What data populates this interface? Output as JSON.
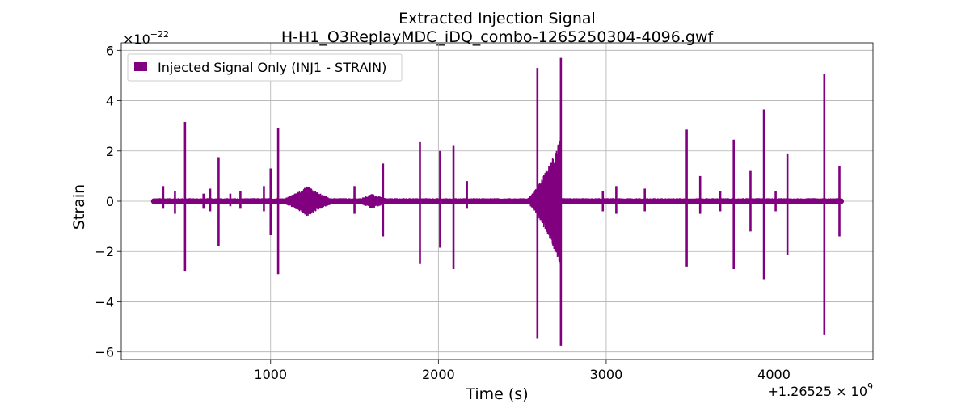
{
  "chart_data": {
    "type": "line",
    "title_line1": "Extracted Injection Signal",
    "title_line2": "H-H1_O3ReplayMDC_iDQ_combo-1265250304-4096.gwf",
    "xlabel": "Time (s)",
    "ylabel": "Strain",
    "y_multiplier": "×10",
    "y_multiplier_exp": "−22",
    "x_offset": "+1.26525 × 10",
    "x_offset_exp": "9",
    "xlim": [
      110,
      4590
    ],
    "ylim": [
      -6.3,
      6.3
    ],
    "grid": true,
    "legend_position": "top-left",
    "x_ticks": [
      1000,
      2000,
      3000,
      4000
    ],
    "x_tick_labels": [
      "1000",
      "2000",
      "3000",
      "4000"
    ],
    "y_ticks": [
      6,
      4,
      2,
      0,
      -2,
      -4,
      -6
    ],
    "y_tick_labels": [
      "6",
      "4",
      "2",
      "0",
      "−2",
      "−4",
      "−6"
    ],
    "series": [
      {
        "name": "Injected Signal Only (INJ1 - STRAIN)",
        "color": "#800080",
        "x_start": 304,
        "x_end": 4400,
        "baseline_amplitude": 0.12,
        "bursts": [
          {
            "x": 360,
            "top": 0.6,
            "bottom": -0.3
          },
          {
            "x": 430,
            "top": 0.4,
            "bottom": -0.5
          },
          {
            "x": 490,
            "top": 3.15,
            "bottom": -2.8
          },
          {
            "x": 600,
            "top": 0.3,
            "bottom": -0.3
          },
          {
            "x": 640,
            "top": 0.5,
            "bottom": -0.4
          },
          {
            "x": 690,
            "top": 1.75,
            "bottom": -1.8
          },
          {
            "x": 760,
            "top": 0.3,
            "bottom": -0.2
          },
          {
            "x": 820,
            "top": 0.4,
            "bottom": -0.3
          },
          {
            "x": 960,
            "top": 0.6,
            "bottom": -0.4
          },
          {
            "x": 1000,
            "top": 1.3,
            "bottom": -1.35
          },
          {
            "x": 1045,
            "top": 2.9,
            "bottom": -2.9
          },
          {
            "x": 1500,
            "top": 0.6,
            "bottom": -0.5
          },
          {
            "x": 1670,
            "top": 1.5,
            "bottom": -1.4
          },
          {
            "x": 1890,
            "top": 2.35,
            "bottom": -2.5
          },
          {
            "x": 2010,
            "top": 2.0,
            "bottom": -1.85
          },
          {
            "x": 2090,
            "top": 2.2,
            "bottom": -2.7
          },
          {
            "x": 2170,
            "top": 0.8,
            "bottom": -0.3
          },
          {
            "x": 2590,
            "top": 5.3,
            "bottom": -5.45
          },
          {
            "x": 2730,
            "top": 5.7,
            "bottom": -5.75
          },
          {
            "x": 2980,
            "top": 0.4,
            "bottom": -0.4
          },
          {
            "x": 3060,
            "top": 0.6,
            "bottom": -0.5
          },
          {
            "x": 3230,
            "top": 0.5,
            "bottom": -0.4
          },
          {
            "x": 3480,
            "top": 2.85,
            "bottom": -2.6
          },
          {
            "x": 3560,
            "top": 1.0,
            "bottom": -0.5
          },
          {
            "x": 3680,
            "top": 0.4,
            "bottom": -0.4
          },
          {
            "x": 3760,
            "top": 2.45,
            "bottom": -2.7
          },
          {
            "x": 3860,
            "top": 1.2,
            "bottom": -1.2
          },
          {
            "x": 3940,
            "top": 3.65,
            "bottom": -3.1
          },
          {
            "x": 4010,
            "top": 0.4,
            "bottom": -0.4
          },
          {
            "x": 4080,
            "top": 1.9,
            "bottom": -2.15
          },
          {
            "x": 4300,
            "top": 5.05,
            "bottom": -5.3
          },
          {
            "x": 4390,
            "top": 1.4,
            "bottom": -1.4
          }
        ],
        "envelopes": [
          {
            "x_start": 1000,
            "x_end": 1450,
            "peak_x": 1220,
            "amplitude": 0.6
          },
          {
            "x_start": 1450,
            "x_end": 1800,
            "peak_x": 1600,
            "amplitude": 0.3
          },
          {
            "x_start": 2500,
            "x_end": 2730,
            "peak_x": 2728,
            "amplitude": 2.6
          }
        ]
      }
    ]
  }
}
